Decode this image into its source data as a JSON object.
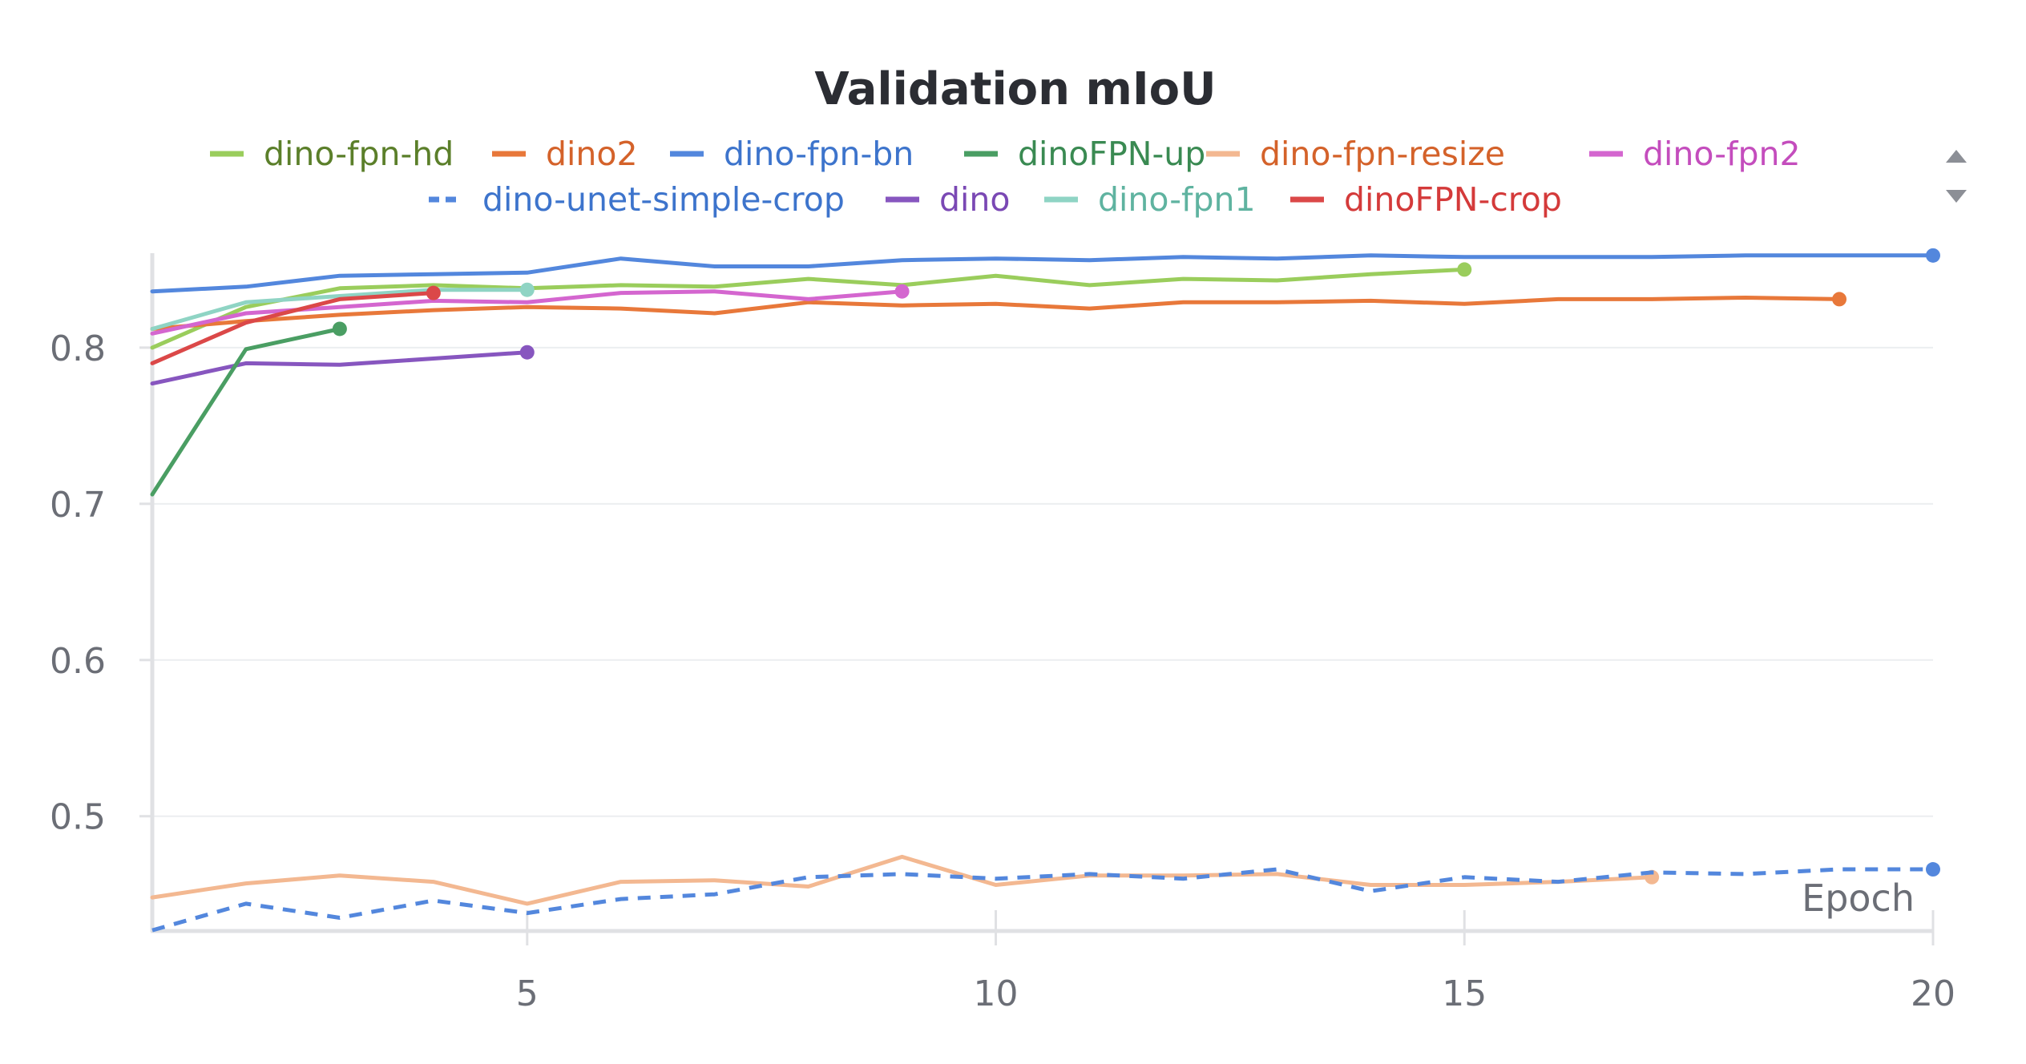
{
  "chart_data": {
    "type": "line",
    "title": "Validation mIoU",
    "xlabel": "Epoch",
    "ylabel": "",
    "xlim": [
      1,
      20
    ],
    "ylim": [
      0.426,
      0.862
    ],
    "xticks": [
      5,
      10,
      15,
      20
    ],
    "yticks": [
      0.5,
      0.6,
      0.7,
      0.8
    ],
    "grid": "horizontal",
    "legend": "top",
    "series": [
      {
        "name": "dino-fpn-hd",
        "color": "#9acd5c",
        "text_color": "#5b7f2a",
        "dash": false,
        "x": [
          1,
          2,
          3,
          4,
          5,
          6,
          7,
          8,
          9,
          10,
          11,
          12,
          13,
          14,
          15
        ],
        "y": [
          0.8,
          0.826,
          0.838,
          0.84,
          0.838,
          0.84,
          0.839,
          0.844,
          0.84,
          0.846,
          0.84,
          0.844,
          0.843,
          0.847,
          0.85
        ]
      },
      {
        "name": "dino2",
        "color": "#e8783a",
        "text_color": "#d4622a",
        "dash": false,
        "x": [
          1,
          2,
          3,
          4,
          5,
          6,
          7,
          8,
          9,
          10,
          11,
          12,
          13,
          14,
          15,
          16,
          17,
          18,
          19
        ],
        "y": [
          0.812,
          0.817,
          0.821,
          0.824,
          0.826,
          0.825,
          0.822,
          0.829,
          0.827,
          0.828,
          0.825,
          0.829,
          0.829,
          0.83,
          0.828,
          0.831,
          0.831,
          0.832,
          0.831
        ]
      },
      {
        "name": "dino-fpn-bn",
        "color": "#5387dd",
        "text_color": "#3d74cc",
        "dash": false,
        "x": [
          1,
          2,
          3,
          4,
          5,
          6,
          7,
          8,
          9,
          10,
          11,
          12,
          13,
          14,
          15,
          16,
          17,
          18,
          19,
          20
        ],
        "y": [
          0.836,
          0.839,
          0.846,
          0.847,
          0.848,
          0.857,
          0.852,
          0.852,
          0.856,
          0.857,
          0.856,
          0.858,
          0.857,
          0.859,
          0.858,
          0.858,
          0.858,
          0.859,
          0.859,
          0.859
        ]
      },
      {
        "name": "dinoFPN-up",
        "color": "#4a9e63",
        "text_color": "#3a8a52",
        "dash": false,
        "x": [
          1,
          2,
          3
        ],
        "y": [
          0.706,
          0.799,
          0.812
        ]
      },
      {
        "name": "dino-fpn-resize",
        "color": "#f3b891",
        "text_color": "#d4622a",
        "dash": false,
        "x": [
          1,
          2,
          3,
          4,
          5,
          6,
          7,
          8,
          9,
          10,
          11,
          12,
          13,
          14,
          15,
          16,
          17
        ],
        "y": [
          0.448,
          0.457,
          0.462,
          0.458,
          0.444,
          0.458,
          0.459,
          0.455,
          0.474,
          0.456,
          0.462,
          0.462,
          0.463,
          0.456,
          0.456,
          0.458,
          0.461
        ]
      },
      {
        "name": "dino-fpn2",
        "color": "#d466cf",
        "text_color": "#c44dbd",
        "dash": false,
        "x": [
          1,
          2,
          3,
          4,
          5,
          6,
          7,
          8,
          9
        ],
        "y": [
          0.809,
          0.822,
          0.826,
          0.83,
          0.829,
          0.835,
          0.836,
          0.831,
          0.836
        ]
      },
      {
        "name": "dino-unet-simple-crop",
        "color": "#5387dd",
        "text_color": "#3d74cc",
        "dash": true,
        "x": [
          1,
          2,
          3,
          4,
          5,
          6,
          7,
          8,
          9,
          10,
          11,
          12,
          13,
          14,
          15,
          16,
          17,
          18,
          19,
          20
        ],
        "y": [
          0.427,
          0.444,
          0.435,
          0.446,
          0.438,
          0.447,
          0.45,
          0.461,
          0.463,
          0.46,
          0.463,
          0.46,
          0.466,
          0.452,
          0.461,
          0.458,
          0.464,
          0.463,
          0.466,
          0.466
        ]
      },
      {
        "name": "dino",
        "color": "#8756bf",
        "text_color": "#7a48b4",
        "dash": false,
        "x": [
          1,
          2,
          3,
          4,
          5
        ],
        "y": [
          0.777,
          0.79,
          0.789,
          0.793,
          0.797
        ]
      },
      {
        "name": "dino-fpn1",
        "color": "#8fd4c4",
        "text_color": "#5fb3a0",
        "dash": false,
        "x": [
          1,
          2,
          3,
          4,
          5
        ],
        "y": [
          0.812,
          0.829,
          0.833,
          0.837,
          0.837
        ]
      },
      {
        "name": "dinoFPN-crop",
        "color": "#db4848",
        "text_color": "#d43a3a",
        "dash": false,
        "x": [
          1,
          2,
          3,
          4
        ],
        "y": [
          0.79,
          0.816,
          0.831,
          0.835
        ]
      }
    ]
  }
}
